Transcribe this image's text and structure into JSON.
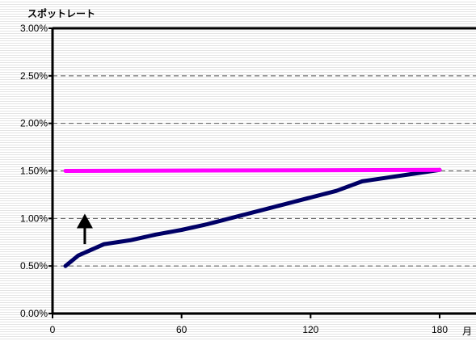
{
  "chart_data": {
    "type": "line",
    "title": "",
    "ylabel": "スポットレート",
    "xlabel": "月",
    "xlim": [
      0,
      180
    ],
    "ylim": [
      0,
      3.0
    ],
    "x_ticks": [
      0,
      60,
      120,
      180
    ],
    "x_tick_labels": [
      "0",
      "60",
      "120",
      "180"
    ],
    "y_ticks": [
      0,
      0.5,
      1.0,
      1.5,
      2.0,
      2.5,
      3.0
    ],
    "y_tick_labels": [
      "0.00%",
      "0.50%",
      "1.00%",
      "1.50%",
      "2.00%",
      "2.50%",
      "3.00%"
    ],
    "grid": "horizontal dashed",
    "series": [
      {
        "color": "#000066",
        "points": [
          [
            6,
            0.5
          ],
          [
            12,
            0.61
          ],
          [
            24,
            0.73
          ],
          [
            36,
            0.77
          ],
          [
            48,
            0.83
          ],
          [
            60,
            0.88
          ],
          [
            72,
            0.94
          ],
          [
            84,
            1.01
          ],
          [
            96,
            1.08
          ],
          [
            108,
            1.15
          ],
          [
            120,
            1.22
          ],
          [
            132,
            1.29
          ],
          [
            144,
            1.39
          ],
          [
            156,
            1.43
          ],
          [
            168,
            1.47
          ],
          [
            180,
            1.51
          ]
        ]
      },
      {
        "color": "#ff00ff",
        "points": [
          [
            6,
            1.5
          ],
          [
            180,
            1.51
          ]
        ]
      }
    ],
    "annotations": [
      {
        "type": "arrow",
        "direction": "up",
        "from": [
          15,
          0.73
        ],
        "to": [
          15,
          1.05
        ],
        "color": "#000000"
      }
    ]
  }
}
